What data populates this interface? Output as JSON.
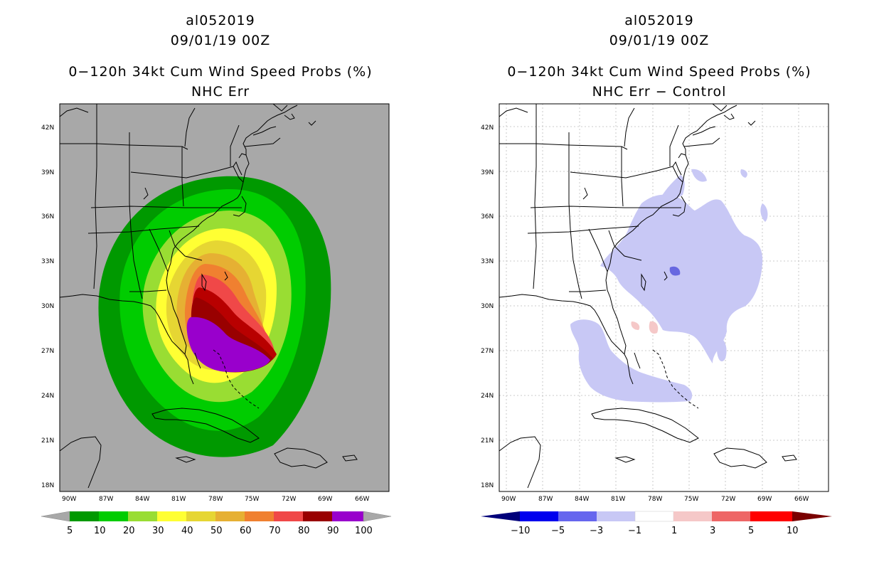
{
  "left": {
    "storm_id": "al052019",
    "datetime": "09/01/19 00Z",
    "title": "0−120h 34kt Cum Wind Speed Probs (%)",
    "subtitle": "NHC Err",
    "lat_labels": [
      "42N",
      "39N",
      "36N",
      "33N",
      "30N",
      "27N",
      "24N",
      "21N",
      "18N"
    ],
    "lon_labels": [
      "90W",
      "87W",
      "84W",
      "81W",
      "78W",
      "75W",
      "72W",
      "69W",
      "66W"
    ],
    "colorbar_labels": [
      "5",
      "10",
      "20",
      "30",
      "40",
      "50",
      "60",
      "70",
      "80",
      "90",
      "100"
    ],
    "colorbar_colors": [
      "#009900",
      "#00cc00",
      "#99dd33",
      "#ffff33",
      "#e6d633",
      "#e6b033",
      "#f08030",
      "#f04848",
      "#990000",
      "#9900cc"
    ]
  },
  "right": {
    "storm_id": "al052019",
    "datetime": "09/01/19 00Z",
    "title": "0−120h 34kt Cum Wind Speed Probs (%)",
    "subtitle": "NHC Err − Control",
    "lat_labels": [
      "42N",
      "39N",
      "36N",
      "33N",
      "30N",
      "27N",
      "24N",
      "21N",
      "18N"
    ],
    "lon_labels": [
      "90W",
      "87W",
      "84W",
      "81W",
      "78W",
      "75W",
      "72W",
      "69W",
      "66W"
    ],
    "colorbar_labels": [
      "−10",
      "−5",
      "−3",
      "−1",
      "1",
      "3",
      "5",
      "10"
    ],
    "colorbar_colors": [
      "#0000cc",
      "#6666ee",
      "#c8c8f5",
      "#ffffff",
      "#f5c8c8",
      "#ee6666",
      "#ff0000"
    ]
  },
  "colors": {
    "land_missing": "#a8a8a8",
    "diff_blue": "#c8c8f5",
    "diff_darkblue": "#6868e0",
    "diff_pink": "#f5c8c8"
  }
}
